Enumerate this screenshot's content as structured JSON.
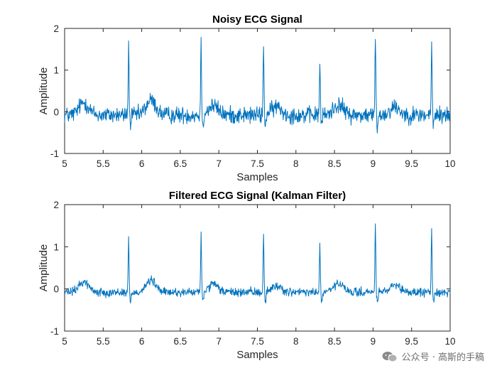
{
  "chart_data": [
    {
      "type": "line",
      "title": "Noisy ECG Signal",
      "xlabel": "Samples",
      "ylabel": "Amplitude",
      "xlim": [
        5,
        10
      ],
      "ylim": [
        -1,
        2
      ],
      "xticks": [
        "5",
        "5.5",
        "6",
        "6.5",
        "7",
        "7.5",
        "8",
        "8.5",
        "9",
        "9.5",
        "10"
      ],
      "yticks": [
        "-1",
        "0",
        "1",
        "2"
      ],
      "series_color": "#0072BD",
      "grid": false,
      "noise_level": 0.1,
      "r_peaks": [
        {
          "x": 5.83,
          "y": 1.66
        },
        {
          "x": 6.77,
          "y": 1.71
        },
        {
          "x": 7.58,
          "y": 1.61
        },
        {
          "x": 8.31,
          "y": 1.3
        },
        {
          "x": 9.03,
          "y": 1.8
        },
        {
          "x": 9.76,
          "y": 1.69
        }
      ],
      "baseline_waves": [
        {
          "x": 5.25,
          "y": 0.3
        },
        {
          "x": 6.12,
          "y": 0.35
        },
        {
          "x": 6.93,
          "y": 0.22
        },
        {
          "x": 7.75,
          "y": 0.2
        },
        {
          "x": 8.55,
          "y": 0.25
        },
        {
          "x": 9.28,
          "y": 0.2
        }
      ]
    },
    {
      "type": "line",
      "title": "Filtered ECG Signal (Kalman Filter)",
      "xlabel": "Samples",
      "ylabel": "Amplitude",
      "xlim": [
        5,
        10
      ],
      "ylim": [
        -1,
        2
      ],
      "xticks": [
        "5",
        "5.5",
        "6",
        "6.5",
        "7",
        "7.5",
        "8",
        "8.5",
        "9",
        "9.5",
        "10"
      ],
      "yticks": [
        "-1",
        "0",
        "1",
        "2"
      ],
      "series_color": "#0072BD",
      "grid": false,
      "noise_level": 0.05,
      "r_peaks": [
        {
          "x": 5.83,
          "y": 1.23
        },
        {
          "x": 6.77,
          "y": 1.38
        },
        {
          "x": 7.58,
          "y": 1.38
        },
        {
          "x": 8.31,
          "y": 1.12
        },
        {
          "x": 9.03,
          "y": 1.57
        },
        {
          "x": 9.76,
          "y": 1.46
        }
      ],
      "baseline_waves": [
        {
          "x": 5.25,
          "y": 0.25
        },
        {
          "x": 6.12,
          "y": 0.28
        },
        {
          "x": 6.93,
          "y": 0.18
        },
        {
          "x": 7.75,
          "y": 0.15
        },
        {
          "x": 8.55,
          "y": 0.2
        },
        {
          "x": 9.28,
          "y": 0.15
        }
      ]
    }
  ],
  "watermark": {
    "text": "公众号 · 高斯的手稿",
    "icon": "wechat-icon"
  }
}
